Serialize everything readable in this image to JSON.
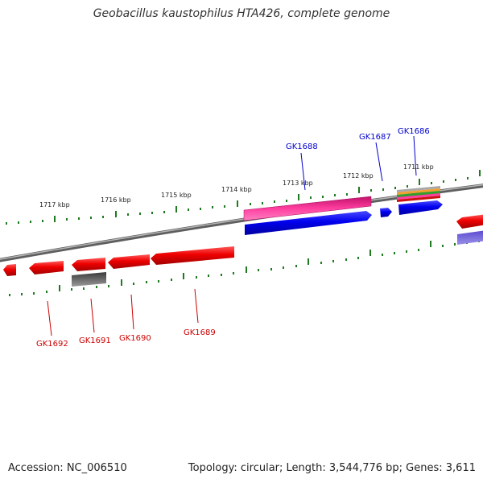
{
  "title": "Geobacillus kaustophilus HTA426, complete genome",
  "footer": {
    "accession": "Accession: NC_006510",
    "stats": "Topology: circular; Length: 3,544,776 bp; Genes: 3,611"
  },
  "scale_labels": [
    "1717 kbp",
    "1716 kbp",
    "1715 kbp",
    "1714 kbp",
    "1713 kbp",
    "1712 kbp",
    "1711 kbp"
  ],
  "genes_forward": [
    "GK1688",
    "GK1687",
    "GK1686"
  ],
  "genes_reverse": [
    "GK1692",
    "GK1691",
    "GK1690",
    "GK1689"
  ],
  "colors": {
    "backbone": "#808080",
    "forward_gene": "#0000ee",
    "reverse_gene": "#ee0000",
    "magenta_feature": "#ee1f8a",
    "grey_feature": "#5a5a5a",
    "tick": "#1f7a1f",
    "label_forward": "#0000cc",
    "label_reverse": "#cc0000"
  }
}
